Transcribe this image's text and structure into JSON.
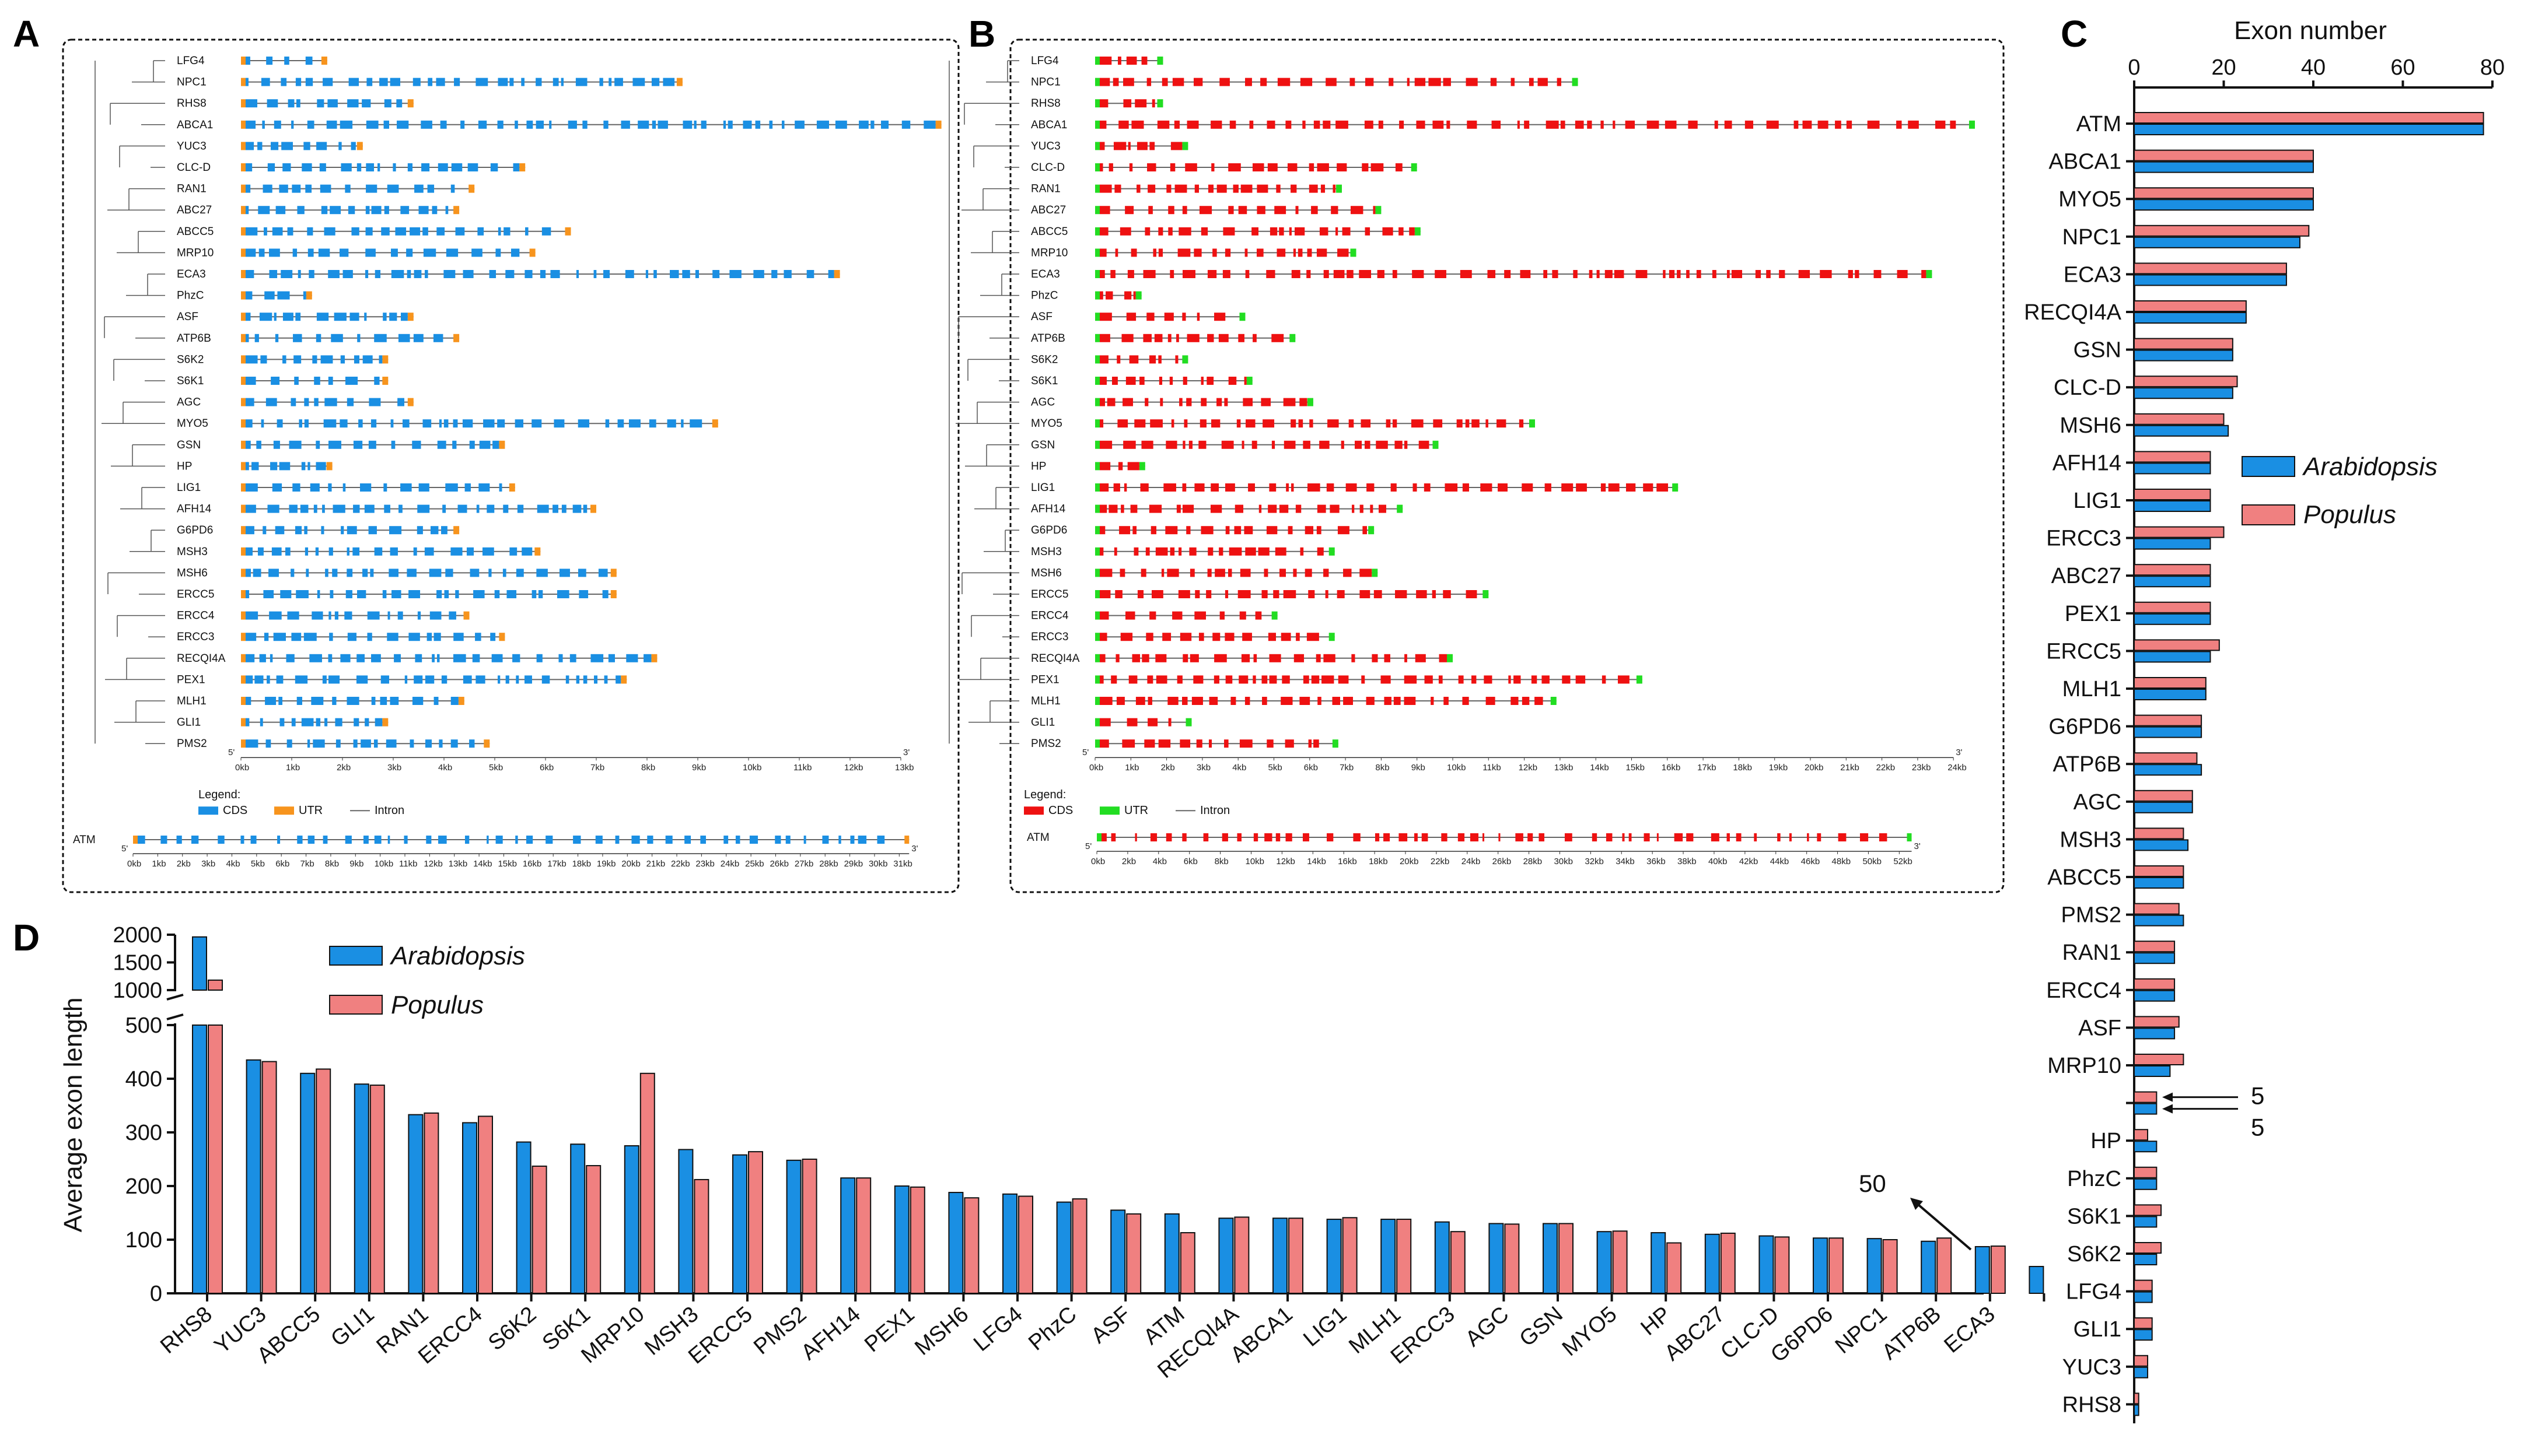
{
  "colors": {
    "arabidopsis": "#1a8fe3",
    "populus": "#f08080",
    "cds_a": "#1a8fe3",
    "utr_a": "#f7941d",
    "cds_b": "#ee1111",
    "utr_b": "#22dd22",
    "intron": "#666666"
  },
  "panels": {
    "a": "A",
    "b": "B",
    "c": "C",
    "d": "D"
  },
  "panel_a": {
    "genes": [
      "LFG4",
      "NPC1",
      "RHS8",
      "ABCA1",
      "YUC3",
      "CLC-D",
      "RAN1",
      "ABC27",
      "ABCC5",
      "MRP10",
      "ECA3",
      "PhzC",
      "ASF",
      "ATP6B",
      "S6K2",
      "S6K1",
      "AGC",
      "MYO5",
      "GSN",
      "HP",
      "LIG1",
      "AFH14",
      "G6PD6",
      "MSH3",
      "MSH6",
      "ERCC5",
      "ERCC4",
      "ERCC3",
      "RECQI4A",
      "PEX1",
      "MLH1",
      "GLI1",
      "PMS2"
    ],
    "gene_length_kb": [
      1.7,
      8.7,
      3.4,
      13.8,
      2.4,
      5.6,
      4.6,
      4.3,
      6.5,
      5.8,
      11.8,
      1.4,
      3.4,
      4.3,
      2.9,
      2.9,
      3.4,
      9.4,
      5.2,
      1.8,
      5.4,
      7.0,
      4.3,
      5.9,
      7.4,
      7.4,
      4.5,
      5.2,
      8.2,
      7.6,
      4.4,
      2.9,
      4.9
    ],
    "axis_ticks": [
      "0kb",
      "1kb",
      "2kb",
      "3kb",
      "4kb",
      "5kb",
      "6kb",
      "7kb",
      "8kb",
      "9kb",
      "10kb",
      "11kb",
      "12kb",
      "13kb"
    ],
    "end5": "5'",
    "end3": "3'",
    "legend_title": "Legend:",
    "legend_cds": "CDS",
    "legend_utr": "UTR",
    "legend_intron": "Intron",
    "atm_label": "ATM",
    "atm_length_kb": 31.3,
    "atm_ticks": [
      "0kb",
      "1kb",
      "2kb",
      "3kb",
      "4kb",
      "5kb",
      "6kb",
      "7kb",
      "8kb",
      "9kb",
      "10kb",
      "11kb",
      "12kb",
      "13kb",
      "14kb",
      "15kb",
      "16kb",
      "17kb",
      "18kb",
      "19kb",
      "20kb",
      "21kb",
      "22kb",
      "23kb",
      "24kb",
      "25kb",
      "26kb",
      "27kb",
      "28kb",
      "29kb",
      "30kb",
      "31kb"
    ]
  },
  "panel_b": {
    "genes": [
      "LFG4",
      "NPC1",
      "RHS8",
      "ABCA1",
      "YUC3",
      "CLC-D",
      "RAN1",
      "ABC27",
      "ABCC5",
      "MRP10",
      "ECA3",
      "PhzC",
      "ASF",
      "ATP6B",
      "S6K2",
      "S6K1",
      "AGC",
      "MYO5",
      "GSN",
      "HP",
      "LIG1",
      "AFH14",
      "G6PD6",
      "MSH3",
      "MSH6",
      "ERCC5",
      "ERCC4",
      "ERCC3",
      "RECQI4A",
      "PEX1",
      "MLH1",
      "GLI1",
      "PMS2"
    ],
    "gene_length_kb": [
      1.9,
      13.5,
      1.9,
      24.6,
      2.6,
      9.0,
      6.9,
      8.0,
      9.1,
      7.3,
      23.4,
      1.3,
      4.2,
      5.6,
      2.6,
      4.4,
      6.1,
      12.3,
      9.6,
      1.4,
      16.3,
      8.6,
      7.8,
      6.7,
      7.9,
      11.0,
      5.1,
      6.7,
      10.0,
      15.3,
      12.9,
      2.7,
      6.8
    ],
    "axis_ticks": [
      "0kb",
      "1kb",
      "2kb",
      "3kb",
      "4kb",
      "5kb",
      "6kb",
      "7kb",
      "8kb",
      "9kb",
      "10kb",
      "11kb",
      "12kb",
      "13kb",
      "14kb",
      "15kb",
      "16kb",
      "17kb",
      "18kb",
      "19kb",
      "20kb",
      "21kb",
      "22kb",
      "23kb",
      "24kb"
    ],
    "end5": "5'",
    "end3": "3'",
    "legend_title": "Legend:",
    "legend_cds": "CDS",
    "legend_utr": "UTR",
    "legend_intron": "Intron",
    "atm_label": "ATM",
    "atm_length_kb": 52.5,
    "atm_ticks": [
      "0kb",
      "2kb",
      "4kb",
      "6kb",
      "8kb",
      "10kb",
      "12kb",
      "14kb",
      "16kb",
      "18kb",
      "20kb",
      "22kb",
      "24kb",
      "26kb",
      "28kb",
      "30kb",
      "32kb",
      "34kb",
      "36kb",
      "38kb",
      "40kb",
      "42kb",
      "44kb",
      "46kb",
      "48kb",
      "50kb",
      "52kb"
    ]
  },
  "chart_data": [
    {
      "panel": "C",
      "type": "bar",
      "orientation": "horizontal",
      "title": "Exon number",
      "xlim": [
        0,
        80
      ],
      "x_ticks": [
        "0",
        "20",
        "40",
        "60",
        "80"
      ],
      "categories": [
        "ATM",
        "ABCA1",
        "MYO5",
        "NPC1",
        "ECA3",
        "RECQI4A",
        "GSN",
        "CLC-D",
        "MSH6",
        "AFH14",
        "LIG1",
        "ERCC3",
        "ABC27",
        "PEX1",
        "ERCC5",
        "MLH1",
        "G6PD6",
        "ATP6B",
        "AGC",
        "MSH3",
        "ABCC5",
        "PMS2",
        "RAN1",
        "ERCC4",
        "ASF",
        "MRP10",
        "",
        "HP",
        "PhzC",
        "S6K1",
        "S6K2",
        "LFG4",
        "GLI1",
        "YUC3",
        "RHS8"
      ],
      "series": [
        {
          "name": "Populus",
          "values": [
            78,
            40,
            40,
            39,
            34,
            25,
            22,
            23,
            20,
            17,
            17,
            20,
            17,
            17,
            19,
            16,
            15,
            14,
            13,
            11,
            11,
            10,
            9,
            9,
            10,
            11,
            5,
            3,
            5,
            6,
            6,
            4,
            4,
            3,
            1
          ]
        },
        {
          "name": "Arabidopsis",
          "values": [
            78,
            40,
            40,
            37,
            34,
            25,
            22,
            22,
            21,
            17,
            17,
            17,
            17,
            17,
            17,
            16,
            15,
            15,
            13,
            12,
            11,
            11,
            9,
            9,
            9,
            8,
            5,
            5,
            5,
            5,
            5,
            4,
            4,
            3,
            1
          ]
        }
      ],
      "annotations": [
        "5",
        "5"
      ],
      "legend": [
        "Arabidopsis",
        "Populus"
      ]
    },
    {
      "panel": "D",
      "type": "bar",
      "ylabel": "Average exon length",
      "y_ticks_lower": [
        "0",
        "100",
        "200",
        "300",
        "400",
        "500"
      ],
      "y_ticks_upper": [
        "1000",
        "1500",
        "2000"
      ],
      "ylim_lower": [
        0,
        500
      ],
      "ylim_upper": [
        1000,
        2000
      ],
      "categories": [
        "RHS8",
        "YUC3",
        "ABCC5",
        "GLI1",
        "RAN1",
        "ERCC4",
        "S6K2",
        "S6K1",
        "MRP10",
        "MSH3",
        "ERCC5",
        "PMS2",
        "AFH14",
        "PEX1",
        "MSH6",
        "LFG4",
        "PhzC",
        "ASF",
        "ATM",
        "RECQI4A",
        "ABCA1",
        "LIG1",
        "MLH1",
        "ERCC3",
        "AGC",
        "GSN",
        "MYO5",
        "HP",
        "ABC27",
        "CLC-D",
        "G6PD6",
        "NPC1",
        "ATP6B",
        "ECA3",
        ""
      ],
      "series": [
        {
          "name": "Arabidopsis",
          "values": [
            1960,
            435,
            410,
            390,
            333,
            318,
            282,
            278,
            275,
            268,
            258,
            248,
            215,
            200,
            188,
            185,
            170,
            155,
            148,
            140,
            140,
            138,
            138,
            133,
            130,
            130,
            115,
            113,
            110,
            107,
            103,
            102,
            97,
            87,
            50
          ]
        },
        {
          "name": "Populus",
          "values": [
            1180,
            432,
            418,
            388,
            336,
            330,
            237,
            238,
            410,
            212,
            264,
            250,
            215,
            198,
            178,
            181,
            176,
            148,
            113,
            142,
            140,
            141,
            138,
            115,
            129,
            130,
            116,
            94,
            112,
            105,
            103,
            100,
            103,
            88,
            null
          ]
        }
      ],
      "annotation": "50",
      "legend": [
        "Arabidopsis",
        "Populus"
      ]
    }
  ]
}
